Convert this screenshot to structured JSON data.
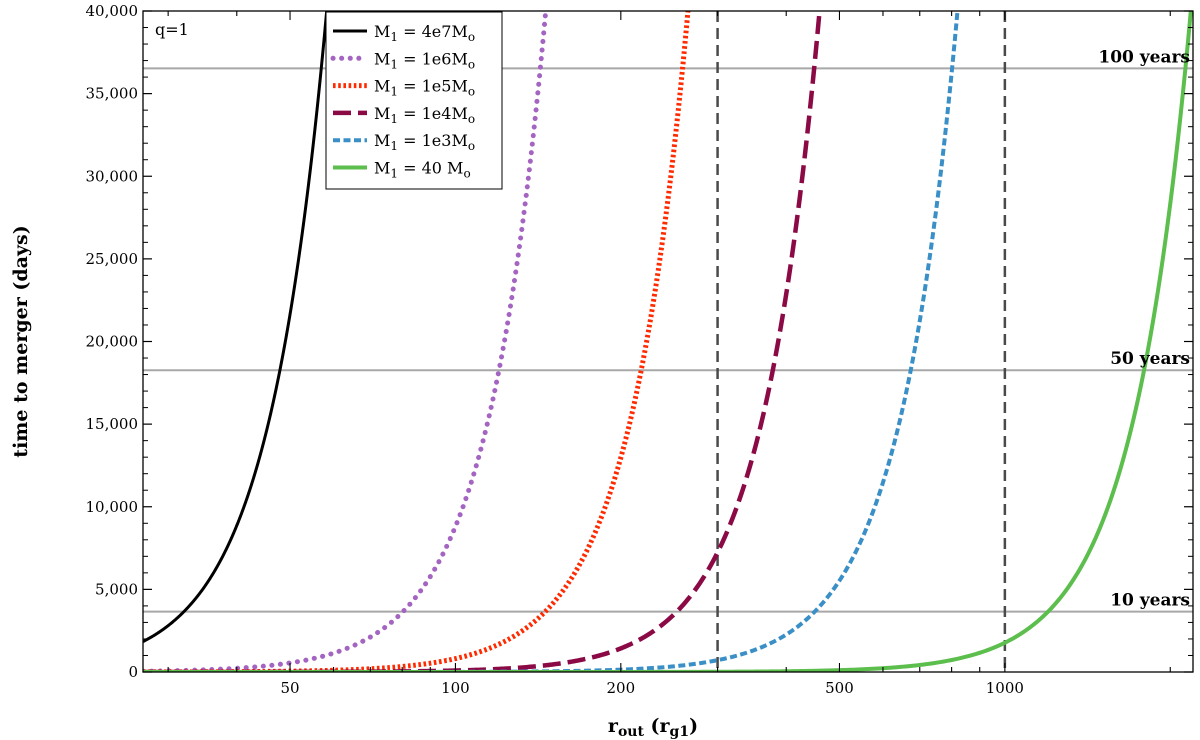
{
  "chart_data": {
    "type": "line",
    "annotation": "q=1",
    "xlabel": "r_out (r_g1)",
    "ylabel": "time to merger (days)",
    "x_scale": "log",
    "xlim": [
      27,
      2200
    ],
    "ylim": [
      0,
      40000
    ],
    "x_ticks": [
      {
        "value": 50,
        "label": "50"
      },
      {
        "value": 100,
        "label": "100"
      },
      {
        "value": 200,
        "label": "200"
      },
      {
        "value": 500,
        "label": "500"
      },
      {
        "value": 1000,
        "label": "1000"
      }
    ],
    "y_ticks": [
      {
        "value": 0,
        "label": "0"
      },
      {
        "value": 5000,
        "label": "5,000"
      },
      {
        "value": 10000,
        "label": "10,000"
      },
      {
        "value": 15000,
        "label": "15,000"
      },
      {
        "value": 20000,
        "label": "20,000"
      },
      {
        "value": 25000,
        "label": "25,000"
      },
      {
        "value": 30000,
        "label": "30,000"
      },
      {
        "value": 35000,
        "label": "35,000"
      },
      {
        "value": 40000,
        "label": "40,000"
      }
    ],
    "reference_lines": [
      {
        "value": 36525,
        "label": "100  years"
      },
      {
        "value": 18262,
        "label": "50   years"
      },
      {
        "value": 3652,
        "label": "10   years"
      }
    ],
    "vertical_lines": [
      300,
      1000
    ],
    "series": [
      {
        "name": "M1 = 4e7Mo",
        "legend_main": "M",
        "legend_sub": "1",
        "legend_eq": " = 4e7M",
        "legend_tail": "o",
        "color": "#000000",
        "style": "solid",
        "x0": 58.3
      },
      {
        "name": "M1 = 1e6Mo",
        "legend_main": "M",
        "legend_sub": "1",
        "legend_eq": " = 1e6M",
        "legend_tail": "o",
        "color": "#a464c1",
        "style": "dotted",
        "x0": 146
      },
      {
        "name": "M1 = 1e5Mo",
        "legend_main": "M",
        "legend_sub": "1",
        "legend_eq": " = 1e5M",
        "legend_tail": "o",
        "color": "#ff2a00",
        "style": "dense-dot",
        "x0": 265
      },
      {
        "name": "M1 = 1e4Mo",
        "legend_main": "M",
        "legend_sub": "1",
        "legend_eq": " = 1e4M",
        "legend_tail": "o",
        "color": "#8b0a45",
        "style": "dashed",
        "x0": 460
      },
      {
        "name": "M1 = 1e3Mo",
        "legend_main": "M",
        "legend_sub": "1",
        "legend_eq": " = 1e3M",
        "legend_tail": "o",
        "color": "#3a8fc7",
        "style": "short-dash",
        "x0": 820
      },
      {
        "name": "M1 = 40  Mo",
        "legend_main": "M",
        "legend_sub": "1",
        "legend_eq": " = 40  M",
        "legend_tail": "o",
        "color": "#5cbe4c",
        "style": "solid-thick",
        "x0": 2180
      }
    ]
  }
}
